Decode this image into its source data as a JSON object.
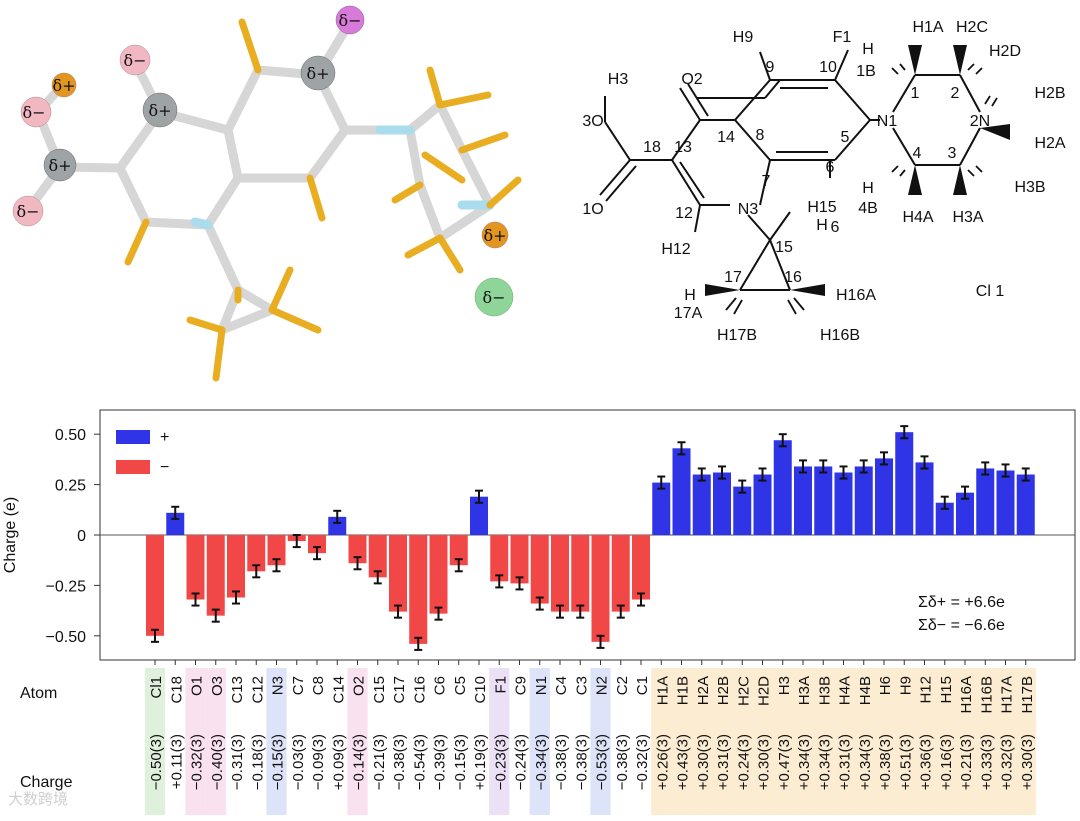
{
  "model_3d": {
    "atom_labels": [
      {
        "id": "a1",
        "label": "δ−",
        "color": "#f2b8c2"
      },
      {
        "id": "a2",
        "label": "δ+",
        "color": "#e2951f"
      },
      {
        "id": "a3",
        "label": "δ+",
        "color": "#9ea3a5"
      },
      {
        "id": "a4",
        "label": "δ−",
        "color": "#f2b8c2"
      },
      {
        "id": "a5",
        "label": "δ−",
        "color": "#f2b8c2"
      },
      {
        "id": "a6",
        "label": "δ+",
        "color": "#9ea3a5"
      },
      {
        "id": "a7",
        "label": "δ−",
        "color": "#d77ad9"
      },
      {
        "id": "a8",
        "label": "δ+",
        "color": "#9ea3a5"
      },
      {
        "id": "a9",
        "label": "δ+",
        "color": "#e2951f"
      },
      {
        "id": "a10",
        "label": "δ−",
        "color": "#8fd59a"
      }
    ]
  },
  "structure": {
    "labels": [
      "H9",
      "F1",
      "H1A",
      "H2C",
      "H",
      "1B",
      "H2D",
      "H3",
      "O2",
      "10",
      "9",
      "1",
      "2",
      "3O",
      "18",
      "13",
      "14",
      "8",
      "N1",
      "2N",
      "H2B",
      "H2A",
      "5",
      "7",
      "6",
      "4",
      "3",
      "H",
      "4B",
      "H4A",
      "H3A",
      "H3B",
      "1O",
      "12",
      "N3",
      "H15",
      "H",
      "6",
      "15",
      "H12",
      "17",
      "16",
      "H",
      "H16A",
      "17A",
      "H17B",
      "H16B",
      "Cl 1"
    ]
  },
  "chart_data": {
    "type": "bar",
    "xlabel": "Atom",
    "ylabel": "Charge (e)",
    "ylim": [
      -0.62,
      0.62
    ],
    "yticks": [
      -0.5,
      -0.25,
      0,
      0.25,
      0.5
    ],
    "ytick_labels": [
      "−0.50",
      "−0.25",
      "0",
      "0.25",
      "0.50"
    ],
    "legend": [
      {
        "name": "+",
        "color": "#2f35e6"
      },
      {
        "name": "−",
        "color": "#f24747"
      }
    ],
    "legend_position": "top-left",
    "annotations": [
      "Σδ+ = +6.6e",
      "Σδ− = −6.6e"
    ],
    "charge_row_label": "Charge",
    "categories": [
      "Cl1",
      "C18",
      "O1",
      "O3",
      "C13",
      "C12",
      "N3",
      "C7",
      "C8",
      "C14",
      "O2",
      "C15",
      "C17",
      "C16",
      "C6",
      "C5",
      "C10",
      "F1",
      "C9",
      "N1",
      "C4",
      "C3",
      "N2",
      "C2",
      "C1",
      "H1A",
      "H1B",
      "H2A",
      "H2B",
      "H2C",
      "H2D",
      "H3",
      "H3A",
      "H3B",
      "H4A",
      "H4B",
      "H6",
      "H9",
      "H12",
      "H15",
      "H16A",
      "H16B",
      "H17A",
      "H17B"
    ],
    "values": [
      -0.5,
      0.11,
      -0.32,
      -0.4,
      -0.31,
      -0.18,
      -0.15,
      -0.03,
      -0.09,
      0.09,
      -0.14,
      -0.21,
      -0.38,
      -0.54,
      -0.39,
      -0.15,
      0.19,
      -0.23,
      -0.24,
      -0.34,
      -0.38,
      -0.38,
      -0.53,
      -0.38,
      -0.32,
      0.26,
      0.43,
      0.3,
      0.31,
      0.24,
      0.3,
      0.47,
      0.34,
      0.34,
      0.31,
      0.34,
      0.38,
      0.51,
      0.36,
      0.16,
      0.21,
      0.33,
      0.32,
      0.3
    ],
    "value_labels": [
      "−0.50(3)",
      "+0.11(3)",
      "−0.32(3)",
      "−0.40(3)",
      "−0.31(3)",
      "−0.18(3)",
      "−0.15(3)",
      "−0.03(3)",
      "−0.09(3)",
      "+0.09(3)",
      "−0.14(3)",
      "−0.21(3)",
      "−0.38(3)",
      "−0.54(3)",
      "−0.39(3)",
      "−0.15(3)",
      "+0.19(3)",
      "−0.23(3)",
      "−0.24(3)",
      "−0.34(3)",
      "−0.38(3)",
      "−0.38(3)",
      "−0.53(3)",
      "−0.38(3)",
      "−0.32(3)",
      "+0.26(3)",
      "+0.43(3)",
      "+0.30(3)",
      "+0.31(3)",
      "+0.24(3)",
      "+0.30(3)",
      "+0.47(3)",
      "+0.34(3)",
      "+0.34(3)",
      "+0.31(3)",
      "+0.34(3)",
      "+0.38(3)",
      "+0.51(3)",
      "+0.36(3)",
      "+0.16(3)",
      "+0.21(3)",
      "+0.33(3)",
      "+0.32(3)",
      "+0.30(3)"
    ],
    "error": 0.03,
    "category_highlight": [
      "green",
      "",
      "pink",
      "pink",
      "",
      "",
      "blue",
      "",
      "",
      "",
      "pink",
      "",
      "",
      "",
      "",
      "",
      "",
      "purple",
      "",
      "blue",
      "",
      "",
      "blue",
      "",
      "",
      "orange",
      "orange",
      "orange",
      "orange",
      "orange",
      "orange",
      "orange",
      "orange",
      "orange",
      "orange",
      "orange",
      "orange",
      "orange",
      "orange",
      "orange",
      "orange",
      "orange",
      "orange",
      "orange"
    ],
    "highlight_colors": {
      "green": "#dff0dc",
      "pink": "#f9e1ef",
      "blue": "#dde3f8",
      "purple": "#ebe0f5",
      "orange": "#fbecd2"
    }
  },
  "watermark": "大数跨境"
}
